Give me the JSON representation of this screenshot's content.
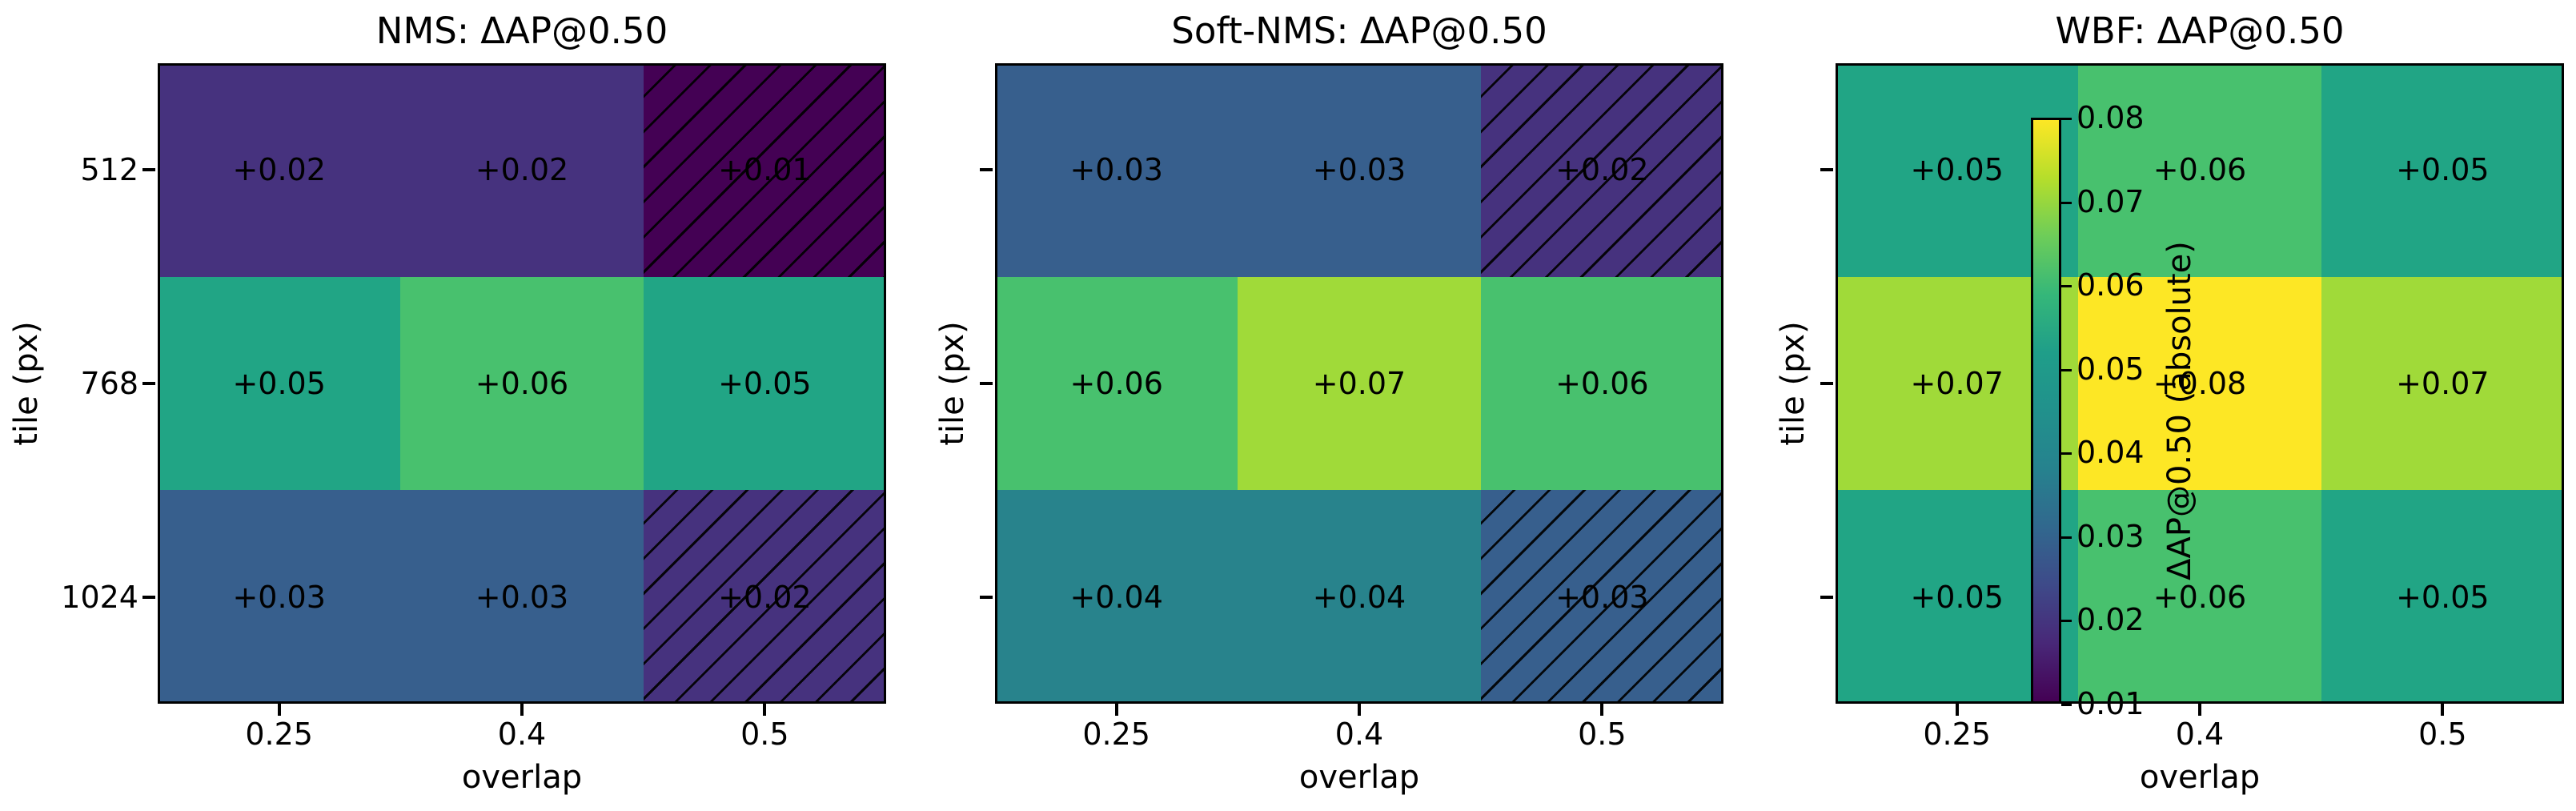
{
  "chart_data": {
    "type": "heatmap",
    "layout": "1x3 subplots, shared viridis colormap, colorbar overlaid on third subplot",
    "colormap": "viridis",
    "vmin": 0.01,
    "vmax": 0.08,
    "x": [
      0.25,
      0.4,
      0.5
    ],
    "y": [
      512,
      768,
      1024
    ],
    "xlabel": "overlap",
    "ylabel": "tile (px)",
    "x_ticklabels": [
      "0.25",
      "0.4",
      "0.5"
    ],
    "y_ticklabels": [
      "512",
      "768",
      "1024"
    ],
    "panels": [
      {
        "title": "NMS: ΔAP@0.50",
        "values": [
          [
            0.02,
            0.02,
            0.01
          ],
          [
            0.05,
            0.06,
            0.05
          ],
          [
            0.03,
            0.03,
            0.02
          ]
        ],
        "labels": [
          [
            "+0.02",
            "+0.02",
            "+0.01"
          ],
          [
            "+0.05",
            "+0.06",
            "+0.05"
          ],
          [
            "+0.03",
            "+0.03",
            "+0.02"
          ]
        ],
        "hatched_cells": [
          [
            0,
            2
          ],
          [
            2,
            2
          ]
        ]
      },
      {
        "title": "Soft-NMS: ΔAP@0.50",
        "values": [
          [
            0.03,
            0.03,
            0.02
          ],
          [
            0.06,
            0.07,
            0.06
          ],
          [
            0.04,
            0.04,
            0.03
          ]
        ],
        "labels": [
          [
            "+0.03",
            "+0.03",
            "+0.02"
          ],
          [
            "+0.06",
            "+0.07",
            "+0.06"
          ],
          [
            "+0.04",
            "+0.04",
            "+0.03"
          ]
        ],
        "hatched_cells": [
          [
            0,
            2
          ],
          [
            2,
            2
          ]
        ]
      },
      {
        "title": "WBF: ΔAP@0.50",
        "values": [
          [
            0.05,
            0.06,
            0.05
          ],
          [
            0.07,
            0.08,
            0.07
          ],
          [
            0.05,
            0.06,
            0.05
          ]
        ],
        "labels": [
          [
            "+0.05",
            "+0.06",
            "+0.05"
          ],
          [
            "+0.07",
            "+0.08",
            "+0.07"
          ],
          [
            "+0.05",
            "+0.06",
            "+0.05"
          ]
        ],
        "hatched_cells": []
      }
    ],
    "colorbar": {
      "label": "ΔAP@0.50 (absolute)",
      "tick_labels": [
        "0.08",
        "0.07",
        "0.06",
        "0.05",
        "0.04",
        "0.03",
        "0.02",
        "0.01"
      ]
    },
    "palette": {
      "0.01": "#440154",
      "0.02": "#46327e",
      "0.03": "#375f8d",
      "0.04": "#28838c",
      "0.05": "#21a585",
      "0.06": "#48c16e",
      "0.07": "#a0da39",
      "0.08": "#fde725"
    },
    "colorbar_gradient": [
      "#440154",
      "#482878",
      "#3e4a89",
      "#31688e",
      "#26828e",
      "#21918c",
      "#1f9e89",
      "#35b779",
      "#6dcd59",
      "#b5de2b",
      "#fde725"
    ]
  }
}
